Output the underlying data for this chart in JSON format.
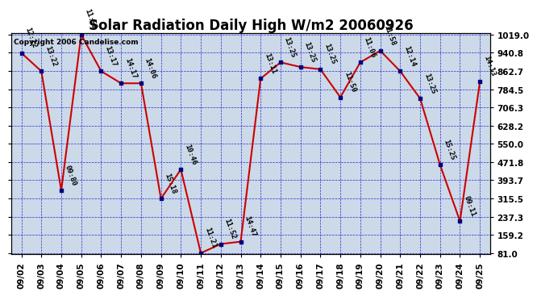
{
  "title": "Solar Radiation Daily High W/m2 20060926",
  "copyright": "Copyright 2006 Candelise.com",
  "dates": [
    "09/02",
    "09/03",
    "09/04",
    "09/05",
    "09/06",
    "09/07",
    "09/08",
    "09/09",
    "09/10",
    "09/11",
    "09/12",
    "09/13",
    "09/14",
    "09/15",
    "09/16",
    "09/17",
    "09/18",
    "09/19",
    "09/20",
    "09/21",
    "09/22",
    "09/23",
    "09/24",
    "09/25"
  ],
  "values": [
    940,
    862,
    350,
    1019,
    862,
    810,
    810,
    315,
    440,
    81,
    120,
    130,
    830,
    900,
    880,
    870,
    750,
    900,
    950,
    862,
    745,
    460,
    218,
    818
  ],
  "labels": [
    "12:22",
    "13:22",
    "09:80",
    "11:52",
    "13:17",
    "14:17",
    "14:06",
    "15:18",
    "10:46",
    "11:21",
    "11:52",
    "14:47",
    "13:11",
    "13:25",
    "13:25",
    "13:25",
    "11:50",
    "11:06",
    "11:58",
    "12:14",
    "13:25",
    "15:25",
    "09:11",
    "14:13"
  ],
  "line_color": "#cc0000",
  "marker_color": "#000080",
  "bg_color": "#ccd9e8",
  "grid_color": "#0000cc",
  "yticks": [
    81.0,
    159.2,
    237.3,
    315.5,
    393.7,
    471.8,
    550.0,
    628.2,
    706.3,
    784.5,
    862.7,
    940.8,
    1019.0
  ],
  "ymin": 81.0,
  "ymax": 1019.0,
  "title_fontsize": 12,
  "label_fontsize": 6.5,
  "tick_fontsize": 7.5,
  "copyright_fontsize": 6.5
}
